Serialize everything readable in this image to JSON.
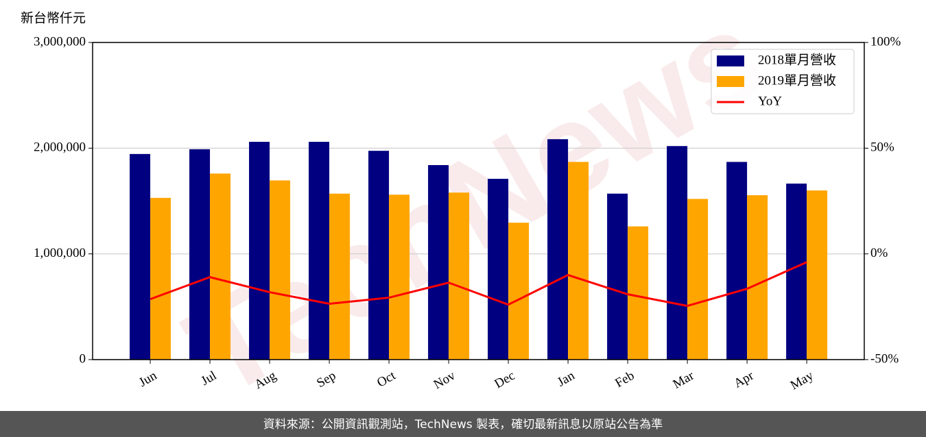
{
  "chart_data": {
    "type": "bar_line",
    "y_label": "新台幣仟元",
    "categories": [
      "Jun",
      "Jul",
      "Aug",
      "Sep",
      "Oct",
      "Nov",
      "Dec",
      "Jan",
      "Feb",
      "Mar",
      "Apr",
      "May"
    ],
    "series": [
      {
        "name": "2018單月營收",
        "color": "#000080",
        "type": "bar",
        "values": [
          1945000,
          1990000,
          2060000,
          2060000,
          1975000,
          1840000,
          1710000,
          2085000,
          1570000,
          2020000,
          1870000,
          1665000
        ]
      },
      {
        "name": "2019單月營收",
        "color": "#ffa500",
        "type": "bar",
        "values": [
          1530000,
          1760000,
          1695000,
          1570000,
          1560000,
          1580000,
          1295000,
          1870000,
          1260000,
          1520000,
          1555000,
          1600000
        ]
      },
      {
        "name": "YoY",
        "color": "#ff0000",
        "type": "line",
        "axis": "y2",
        "values": [
          -21.4,
          -11,
          -18.1,
          -23.6,
          -20.7,
          -13.6,
          -24,
          -10,
          -19.1,
          -24.6,
          -16.5,
          -3.9
        ]
      }
    ],
    "ylim": [
      0,
      3000000
    ],
    "yticks": [
      0,
      {
        "value": 1000000,
        "label": "1,000,000"
      },
      {
        "value": 2000000,
        "label": "2,000,000"
      },
      {
        "value": 3000000,
        "label": "3,000,000"
      }
    ],
    "y2lim": [
      -50,
      100
    ],
    "y2ticks": [
      {
        "value": -50,
        "label": "-50%"
      },
      {
        "value": 0,
        "label": "0%"
      },
      {
        "value": 50,
        "label": "50%"
      },
      {
        "value": 100,
        "label": "100%"
      }
    ],
    "grid": true,
    "legend": "upper right"
  },
  "watermark": "TechNews",
  "footer": "資料來源：公開資訊觀測站，TechNews 製表，確切最新訊息以原站公告為準"
}
